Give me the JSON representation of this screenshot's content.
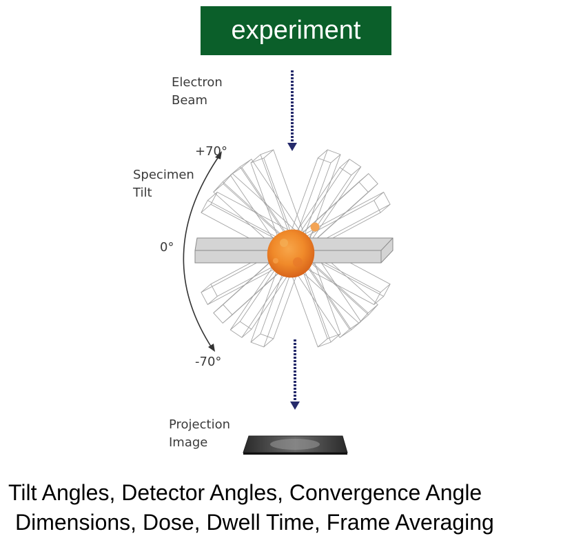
{
  "title": "experiment",
  "labels": {
    "electron_beam": [
      "Electron",
      "Beam"
    ],
    "specimen_tilt": [
      "Specimen",
      "Tilt"
    ],
    "tilt_max": "+70°",
    "tilt_zero": "0°",
    "tilt_min": "-70°",
    "projection_image": [
      "Projection",
      "Image"
    ]
  },
  "caption": {
    "line1": "Tilt Angles, Detector Angles, Convergence Angle",
    "line2": "Dimensions, Dose, Dwell Time, Frame Averaging"
  },
  "colors": {
    "title_bg": "#0b5f2a",
    "beam_arrow": "#252a6b",
    "specimen": "#f08a2a",
    "slab_outline": "#9a9a9a"
  },
  "icons": [
    "beam-down-arrow-icon",
    "tilt-arc-arrow-icon",
    "specimen-particle-icon",
    "projection-plate-icon"
  ]
}
